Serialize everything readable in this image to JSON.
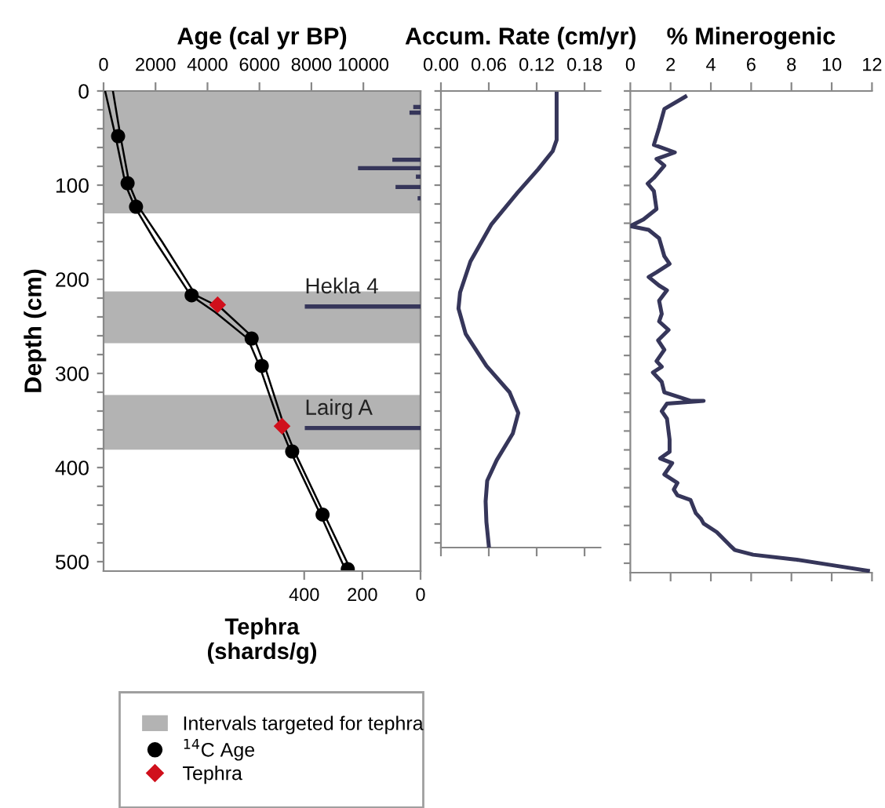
{
  "chart_data": [
    {
      "type": "line",
      "xlabel": "Age (cal yr BP)",
      "ylabel": "Depth (cm)",
      "xlim": [
        0,
        12200
      ],
      "xticks": [
        0,
        2000,
        4000,
        6000,
        8000,
        10000
      ],
      "ylim": [
        510,
        0
      ],
      "yticks": [
        0,
        {
          "value": 20,
          "label": null
        },
        {
          "value": 40,
          "label": null
        },
        {
          "value": 60,
          "label": null
        },
        {
          "value": 80,
          "label": null
        },
        100,
        {
          "value": 120,
          "label": null
        },
        {
          "value": 140,
          "label": null
        },
        {
          "value": 160,
          "label": null
        },
        {
          "value": 180,
          "label": null
        },
        200,
        {
          "value": 220,
          "label": null
        },
        {
          "value": 240,
          "label": null
        },
        {
          "value": 260,
          "label": null
        },
        {
          "value": 280,
          "label": null
        },
        300,
        {
          "value": 320,
          "label": null
        },
        {
          "value": 340,
          "label": null
        },
        {
          "value": 360,
          "label": null
        },
        {
          "value": 380,
          "label": null
        },
        400,
        {
          "value": 420,
          "label": null
        },
        {
          "value": 440,
          "label": null
        },
        {
          "value": 460,
          "label": null
        },
        {
          "value": 480,
          "label": null
        },
        500
      ],
      "bands": [
        {
          "axis": "y",
          "from": 0,
          "to": 130,
          "label": "Intervals targeted for tephra",
          "color": "#b3b3b3"
        },
        {
          "axis": "y",
          "from": 213,
          "to": 268,
          "color": "#b3b3b3"
        },
        {
          "axis": "y",
          "from": 323,
          "to": 381,
          "color": "#b3b3b3"
        }
      ],
      "legend": "bottom",
      "grid": false,
      "series": [
        {
          "type": "line",
          "color": "#000000",
          "x": [
            60,
            460,
            850,
            1200,
            2000,
            3350,
            4300,
            5550,
            6000,
            6800,
            7200,
            8350,
            9300
          ],
          "values": [
            0,
            48,
            100,
            123,
            160,
            217,
            235,
            263,
            292,
            356,
            383,
            450,
            508
          ]
        },
        {
          "type": "line",
          "color": "#000000",
          "x": [
            360,
            650,
            1000,
            1350,
            2250,
            3550,
            4500,
            5800,
            6200,
            6950,
            7350,
            8500,
            9500
          ],
          "values": [
            0,
            48,
            100,
            123,
            160,
            217,
            230,
            263,
            292,
            356,
            383,
            450,
            508
          ]
        },
        {
          "type": "scatter",
          "name": "$^{14}$C Age",
          "marker": "circle",
          "color": "#000000",
          "x": [
            560,
            925,
            1250,
            3390,
            5700,
            6090,
            7260,
            8430,
            9400
          ],
          "values": [
            48,
            98,
            123,
            217,
            263,
            292,
            383,
            450,
            508
          ]
        },
        {
          "type": "scatter",
          "name": "Tephra",
          "marker": "diamond",
          "color": "#d0101c",
          "x": [
            4390,
            6870
          ],
          "values": [
            227,
            356
          ]
        }
      ]
    },
    {
      "type": "bar",
      "orientation": "horizontal",
      "xlabel": "Tephra\n(shards/g)",
      "xlim": [
        1090,
        0
      ],
      "xticks": [
        0,
        200,
        400
      ],
      "ylim": [
        510,
        0
      ],
      "tick_labels": "x",
      "grid": false,
      "annotations": [
        {
          "text": "Hekla 4",
          "x": 398,
          "y": 229
        },
        {
          "text": "Lairg A",
          "x": 398,
          "y": 358
        }
      ],
      "series": [
        {
          "color": "#36365a",
          "x": [
            17,
            23,
            73,
            82,
            91,
            102,
            114,
            229,
            358
          ],
          "values": [
            25,
            38,
            97,
            215,
            16,
            86,
            10,
            398,
            398
          ]
        }
      ]
    },
    {
      "type": "line",
      "xlabel": "Accum. Rate (cm/yr)",
      "xlim": [
        0,
        0.2
      ],
      "xticks": [
        {
          "value": 0,
          "label": "0.00"
        },
        {
          "value": 0.06,
          "label": "0.06"
        },
        {
          "value": 0.12,
          "label": "0.12"
        },
        {
          "value": 0.18,
          "label": "0.18"
        }
      ],
      "ylim": [
        485,
        0
      ],
      "yticks": [
        0,
        20,
        40,
        60,
        80,
        100,
        120,
        140,
        160,
        180,
        200,
        220,
        240,
        260,
        280,
        300,
        320,
        340,
        360,
        380,
        400,
        420,
        440,
        460,
        480
      ],
      "tick_labels": "x",
      "grid": false,
      "series": [
        {
          "color": "#36365a",
          "x": [
            0.145,
            0.145,
            0.14,
            0.122,
            0.096,
            0.063,
            0.037,
            0.024,
            0.022,
            0.031,
            0.057,
            0.086,
            0.097,
            0.09,
            0.07,
            0.058,
            0.056,
            0.057,
            0.06
          ],
          "values": [
            3,
            52,
            64,
            83,
            108,
            142,
            181,
            214,
            231,
            258,
            292,
            320,
            342,
            364,
            392,
            414,
            436,
            458,
            483
          ]
        }
      ]
    },
    {
      "type": "line",
      "xlabel": "% Minerogenic",
      "xlim": [
        0,
        12
      ],
      "xticks": [
        0,
        2,
        4,
        6,
        8,
        10,
        12
      ],
      "ylim": [
        510,
        0
      ],
      "yticks": [
        0,
        20,
        40,
        60,
        80,
        100,
        120,
        140,
        160,
        180,
        200,
        220,
        240,
        260,
        280,
        300,
        320,
        340,
        360,
        380,
        400,
        420,
        440,
        460,
        480,
        500
      ],
      "tick_labels": "x",
      "grid": false,
      "series": [
        {
          "color": "#36365a",
          "x": [
            2.73,
            1.69,
            1.43,
            1.17,
            2.21,
            1.3,
            1.69,
            1.17,
            0.86,
            1.17,
            1.3,
            0.65,
            0,
            0.91,
            1.43,
            1.69,
            1.95,
            1.3,
            0.91,
            1.43,
            1.82,
            1.43,
            1.56,
            1.43,
            1.9,
            1.38,
            1.69,
            1.3,
            1.56,
            1.12,
            1.56,
            1.69,
            2.99,
            3.64,
            1.82,
            1.56,
            1.82,
            1.95,
            1.95,
            1.48,
            2.08,
            1.69,
            2.34,
            2.16,
            2.34,
            2.99,
            3.25,
            3.51,
            3.64,
            4.29,
            4.94,
            5.19,
            6.1,
            8.18,
            10.0,
            11.8
          ],
          "values": [
            6,
            19,
            39,
            57,
            65,
            72,
            79,
            92,
            98,
            106,
            125,
            136,
            143,
            147,
            156,
            175,
            183,
            192,
            197,
            206,
            211,
            222,
            236,
            244,
            253,
            264,
            274,
            286,
            292,
            298,
            308,
            319,
            328,
            328,
            331,
            339,
            347,
            369,
            382,
            389,
            394,
            406,
            415,
            422,
            428,
            433,
            447,
            453,
            458,
            467,
            481,
            486,
            491,
            496,
            502,
            508
          ]
        }
      ]
    }
  ]
}
